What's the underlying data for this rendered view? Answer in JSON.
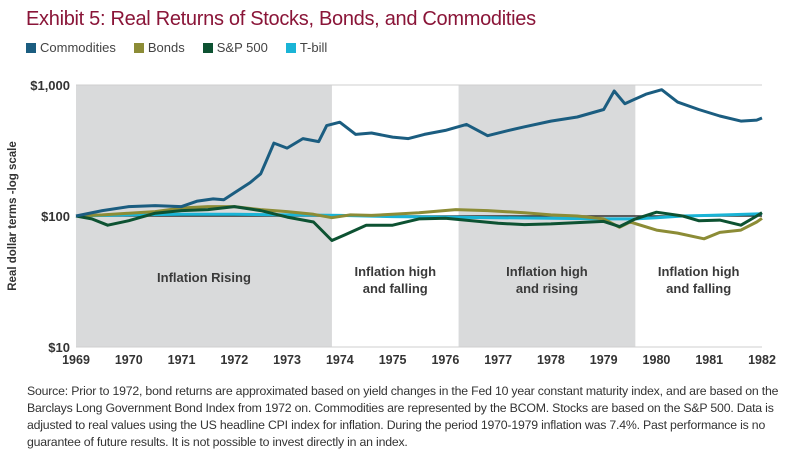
{
  "title": "Exhibit 5: Real Returns of Stocks, Bonds, and Commodities",
  "colors": {
    "title": "#8a1538",
    "band": "#d9dadb"
  },
  "chart_data": {
    "type": "line",
    "title": "Exhibit 5: Real Returns of Stocks, Bonds, and Commodities",
    "ylabel": "Real dollar terms -log scale",
    "xlabel": "",
    "yscale": "log",
    "ylim": [
      10,
      1000
    ],
    "xlim": [
      1969,
      1982
    ],
    "yticks": [
      "$1,000",
      "$100",
      "$10"
    ],
    "ytick_values": [
      1000,
      100,
      10
    ],
    "xticks": [
      "1969",
      "1970",
      "1971",
      "1972",
      "1973",
      "1974",
      "1975",
      "1976",
      "1977",
      "1978",
      "1979",
      "1980",
      "1981",
      "1982"
    ],
    "legend_placement": "top-left",
    "regimes": [
      {
        "label": "Inflation Rising",
        "start": 1969,
        "end": 1973.85,
        "shaded": true
      },
      {
        "label": "Inflation high and falling",
        "start": 1973.85,
        "end": 1976.25,
        "shaded": false
      },
      {
        "label": "Inflation high and rising",
        "start": 1976.25,
        "end": 1979.6,
        "shaded": true
      },
      {
        "label": "Inflation high and falling",
        "start": 1979.6,
        "end": 1982,
        "shaded": false
      }
    ],
    "series": [
      {
        "name": "Commodities",
        "color": "#1b5d80",
        "points": [
          [
            1969,
            100
          ],
          [
            1969.5,
            110
          ],
          [
            1970,
            118
          ],
          [
            1970.5,
            120
          ],
          [
            1971,
            118
          ],
          [
            1971.3,
            130
          ],
          [
            1971.6,
            135
          ],
          [
            1971.8,
            133
          ],
          [
            1972,
            150
          ],
          [
            1972.3,
            180
          ],
          [
            1972.5,
            210
          ],
          [
            1972.6,
            260
          ],
          [
            1972.75,
            360
          ],
          [
            1973,
            330
          ],
          [
            1973.3,
            390
          ],
          [
            1973.6,
            370
          ],
          [
            1973.75,
            490
          ],
          [
            1974,
            520
          ],
          [
            1974.3,
            420
          ],
          [
            1974.6,
            430
          ],
          [
            1975,
            400
          ],
          [
            1975.3,
            390
          ],
          [
            1975.6,
            420
          ],
          [
            1976,
            450
          ],
          [
            1976.4,
            500
          ],
          [
            1976.8,
            410
          ],
          [
            1977.2,
            450
          ],
          [
            1977.5,
            480
          ],
          [
            1978,
            530
          ],
          [
            1978.5,
            570
          ],
          [
            1979,
            650
          ],
          [
            1979.2,
            900
          ],
          [
            1979.4,
            720
          ],
          [
            1979.8,
            850
          ],
          [
            1980.1,
            920
          ],
          [
            1980.4,
            740
          ],
          [
            1980.8,
            650
          ],
          [
            1981.2,
            580
          ],
          [
            1981.6,
            530
          ],
          [
            1981.9,
            540
          ],
          [
            1982,
            560
          ]
        ]
      },
      {
        "name": "Bonds",
        "color": "#8c8c36",
        "points": [
          [
            1969,
            100
          ],
          [
            1969.5,
            102
          ],
          [
            1970,
            105
          ],
          [
            1970.5,
            108
          ],
          [
            1971,
            115
          ],
          [
            1971.5,
            118
          ],
          [
            1972,
            118
          ],
          [
            1972.5,
            112
          ],
          [
            1973,
            108
          ],
          [
            1973.5,
            103
          ],
          [
            1973.85,
            97
          ],
          [
            1974.2,
            102
          ],
          [
            1974.6,
            101
          ],
          [
            1975,
            103
          ],
          [
            1975.5,
            106
          ],
          [
            1976.2,
            112
          ],
          [
            1976.8,
            110
          ],
          [
            1977.5,
            106
          ],
          [
            1978,
            102
          ],
          [
            1978.5,
            100
          ],
          [
            1979,
            95
          ],
          [
            1979.3,
            82
          ],
          [
            1979.5,
            90
          ],
          [
            1980,
            78
          ],
          [
            1980.4,
            74
          ],
          [
            1980.9,
            67
          ],
          [
            1981.2,
            75
          ],
          [
            1981.6,
            78
          ],
          [
            1981.9,
            90
          ],
          [
            1982,
            96
          ]
        ]
      },
      {
        "name": "S&P 500",
        "color": "#0d5232",
        "points": [
          [
            1969,
            100
          ],
          [
            1969.3,
            95
          ],
          [
            1969.6,
            85
          ],
          [
            1970,
            92
          ],
          [
            1970.5,
            105
          ],
          [
            1971,
            110
          ],
          [
            1971.5,
            112
          ],
          [
            1972,
            118
          ],
          [
            1972.5,
            110
          ],
          [
            1973,
            98
          ],
          [
            1973.5,
            90
          ],
          [
            1973.85,
            65
          ],
          [
            1974.1,
            72
          ],
          [
            1974.5,
            85
          ],
          [
            1975,
            85
          ],
          [
            1975.5,
            95
          ],
          [
            1976,
            96
          ],
          [
            1976.5,
            92
          ],
          [
            1977,
            88
          ],
          [
            1977.5,
            86
          ],
          [
            1978,
            87
          ],
          [
            1978.5,
            89
          ],
          [
            1979,
            91
          ],
          [
            1979.3,
            83
          ],
          [
            1979.6,
            95
          ],
          [
            1980,
            107
          ],
          [
            1980.5,
            100
          ],
          [
            1980.8,
            92
          ],
          [
            1981.2,
            93
          ],
          [
            1981.6,
            85
          ],
          [
            1981.9,
            100
          ],
          [
            1982,
            106
          ]
        ]
      },
      {
        "name": "T-bill",
        "color": "#1ab4d6",
        "points": [
          [
            1969,
            100
          ],
          [
            1970,
            102
          ],
          [
            1971,
            103
          ],
          [
            1972,
            103
          ],
          [
            1973,
            102
          ],
          [
            1974,
            101
          ],
          [
            1975,
            99
          ],
          [
            1976,
            98
          ],
          [
            1977,
            97
          ],
          [
            1978,
            96
          ],
          [
            1979,
            95
          ],
          [
            1979.6,
            95
          ],
          [
            1980,
            97
          ],
          [
            1980.5,
            100
          ],
          [
            1981,
            101
          ],
          [
            1982,
            104
          ]
        ]
      }
    ]
  },
  "source": "Source:  Prior to 1972, bond returns are approximated based on yield changes in the Fed 10 year constant maturity index, and are based on the Barclays Long Government Bond Index from 1972 on. Commodities are represented by the BCOM.  Stocks are based on the S&P 500. Data is adjusted to real values using the US headline CPI index for inflation. During the period 1970-1979 inflation was 7.4%. Past performance is no guarantee of future results. It is not possible to invest directly in an index."
}
